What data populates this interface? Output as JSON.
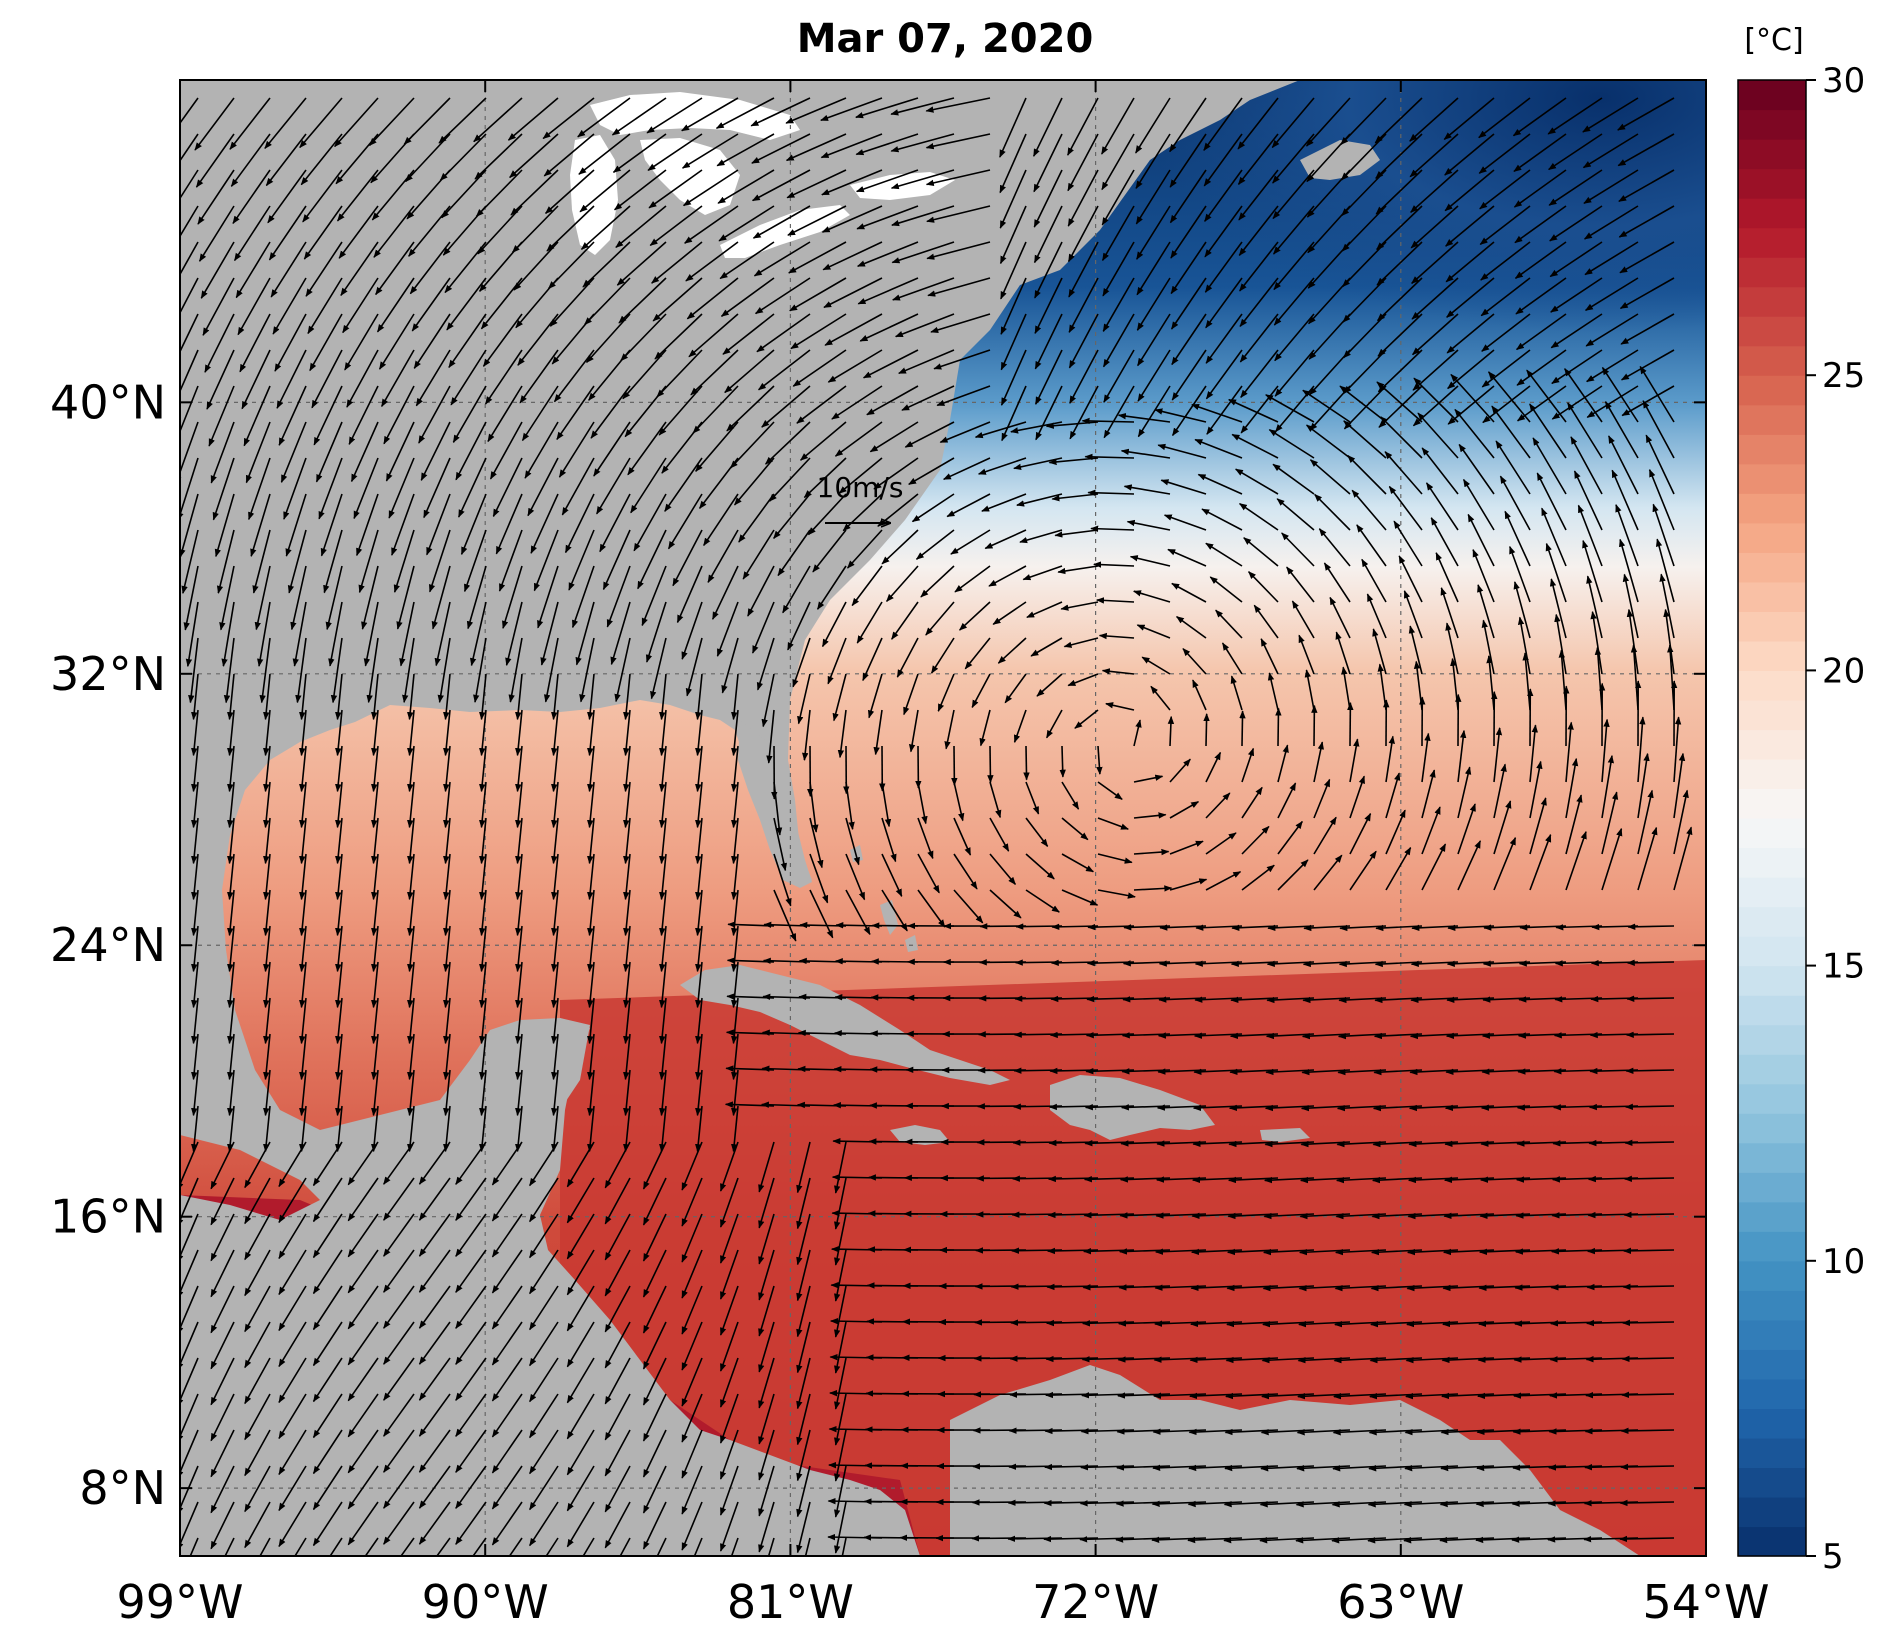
{
  "map": {
    "title": "Mar 07, 2020",
    "region": {
      "lon_min": -99,
      "lon_max": -54,
      "lat_min": 6,
      "lat_max": 49.5
    },
    "lon_ticks": [
      {
        "value": -99,
        "label": "99°W"
      },
      {
        "value": -90,
        "label": "90°W"
      },
      {
        "value": -81,
        "label": "81°W"
      },
      {
        "value": -72,
        "label": "72°W"
      },
      {
        "value": -63,
        "label": "63°W"
      },
      {
        "value": -54,
        "label": "54°W"
      }
    ],
    "lat_ticks": [
      {
        "value": 8,
        "label": "8°N"
      },
      {
        "value": 16,
        "label": "16°N"
      },
      {
        "value": 24,
        "label": "24°N"
      },
      {
        "value": 32,
        "label": "32°N"
      },
      {
        "value": 40,
        "label": "40°N"
      }
    ],
    "gridlines": true,
    "land_color": "#b3b3b3",
    "lake_color": "#ffffff",
    "wind_reference": {
      "label": "10m/s",
      "speed": 10,
      "lon": -80,
      "lat": 34.9
    }
  },
  "colorbar": {
    "unit_label": "[°C]",
    "min": 5,
    "max": 30,
    "ticks": [
      {
        "value": 5,
        "label": "5"
      },
      {
        "value": 10,
        "label": "10"
      },
      {
        "value": 15,
        "label": "15"
      },
      {
        "value": 20,
        "label": "20"
      },
      {
        "value": 25,
        "label": "25"
      },
      {
        "value": 30,
        "label": "30"
      }
    ],
    "colormap": "RdBu_r",
    "colors": [
      "#08306b",
      "#2166ac",
      "#4393c3",
      "#92c5de",
      "#d1e5f0",
      "#f7f7f7",
      "#fddbc7",
      "#f4a582",
      "#d6604d",
      "#b2182b",
      "#67001f"
    ]
  }
}
